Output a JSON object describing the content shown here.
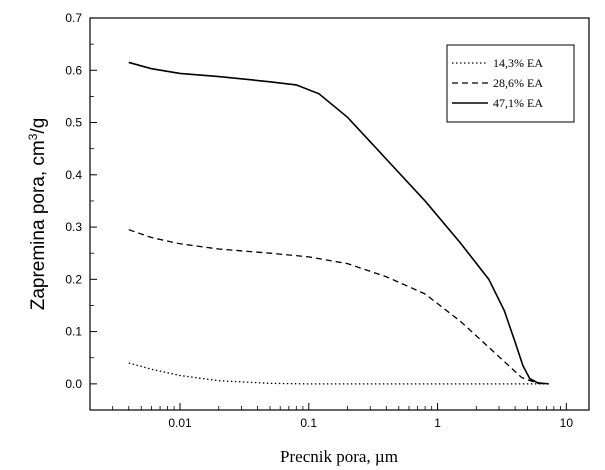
{
  "chart_data": {
    "type": "line",
    "xlabel": "Precnik pora, µm",
    "ylabel_main": "Zapremina pora, cm",
    "ylabel_sup": "3",
    "ylabel_tail": "/g",
    "x_scale": "log",
    "xlim": [
      0.002,
      15
    ],
    "ylim": [
      -0.05,
      0.7
    ],
    "x_ticks": [
      {
        "value": 0.01,
        "label": "0.01"
      },
      {
        "value": 0.1,
        "label": "0.1"
      },
      {
        "value": 1,
        "label": "1"
      },
      {
        "value": 10,
        "label": "10"
      }
    ],
    "y_ticks": [
      {
        "value": 0.0,
        "label": "0.0"
      },
      {
        "value": 0.1,
        "label": "0.1"
      },
      {
        "value": 0.2,
        "label": "0.2"
      },
      {
        "value": 0.3,
        "label": "0.3"
      },
      {
        "value": 0.4,
        "label": "0.4"
      },
      {
        "value": 0.5,
        "label": "0.5"
      },
      {
        "value": 0.6,
        "label": "0.6"
      },
      {
        "value": 0.7,
        "label": "0.7"
      }
    ],
    "legend_position": "top-right",
    "grid": false,
    "series": [
      {
        "name": "14,3% EA",
        "dash": "dotted",
        "points": [
          [
            0.004,
            0.04
          ],
          [
            0.006,
            0.028
          ],
          [
            0.01,
            0.016
          ],
          [
            0.02,
            0.006
          ],
          [
            0.05,
            0.001
          ],
          [
            0.1,
            0.0
          ],
          [
            1,
            0.0
          ],
          [
            5,
            0.0
          ],
          [
            7.3,
            0.0
          ]
        ]
      },
      {
        "name": "28,6% EA",
        "dash": "dashed",
        "points": [
          [
            0.004,
            0.295
          ],
          [
            0.006,
            0.28
          ],
          [
            0.01,
            0.268
          ],
          [
            0.02,
            0.258
          ],
          [
            0.05,
            0.25
          ],
          [
            0.1,
            0.243
          ],
          [
            0.2,
            0.23
          ],
          [
            0.4,
            0.205
          ],
          [
            0.8,
            0.172
          ],
          [
            1.5,
            0.12
          ],
          [
            3,
            0.052
          ],
          [
            4.5,
            0.012
          ],
          [
            6,
            0.001
          ],
          [
            7.3,
            0.0
          ]
        ]
      },
      {
        "name": "47,1% EA",
        "dash": "solid",
        "points": [
          [
            0.004,
            0.615
          ],
          [
            0.006,
            0.603
          ],
          [
            0.01,
            0.594
          ],
          [
            0.02,
            0.588
          ],
          [
            0.05,
            0.578
          ],
          [
            0.08,
            0.572
          ],
          [
            0.12,
            0.555
          ],
          [
            0.2,
            0.51
          ],
          [
            0.4,
            0.43
          ],
          [
            0.8,
            0.35
          ],
          [
            1.5,
            0.27
          ],
          [
            2.5,
            0.2
          ],
          [
            3.3,
            0.14
          ],
          [
            4,
            0.08
          ],
          [
            4.6,
            0.035
          ],
          [
            5.2,
            0.01
          ],
          [
            6,
            0.002
          ],
          [
            7.3,
            0.0
          ]
        ]
      }
    ]
  }
}
